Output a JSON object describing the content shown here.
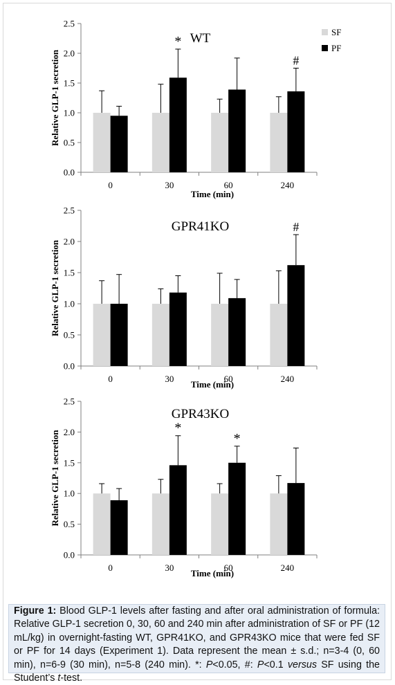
{
  "chart_data": [
    {
      "type": "bar",
      "title": "WT",
      "xlabel": "Time (min)",
      "ylabel": "Relative GLP-1 secretion",
      "ylim": [
        0,
        2.5
      ],
      "yticks": [
        "0.0",
        "0.5",
        "1.0",
        "1.5",
        "2.0",
        "2.5"
      ],
      "categories": [
        "0",
        "30",
        "60",
        "240"
      ],
      "legend": "top-right",
      "series": [
        {
          "name": "SF",
          "color": "#d9d9d9",
          "values": [
            1.0,
            1.0,
            1.0,
            1.0
          ],
          "errors": [
            0.37,
            0.48,
            0.23,
            0.27
          ]
        },
        {
          "name": "PF",
          "color": "#000000",
          "values": [
            0.95,
            1.59,
            1.39,
            1.36
          ],
          "errors": [
            0.16,
            0.48,
            0.53,
            0.39
          ]
        }
      ],
      "annotations": [
        {
          "text": "*",
          "category": "30",
          "series": "PF"
        },
        {
          "text": "#",
          "category": "240",
          "series": "PF"
        }
      ]
    },
    {
      "type": "bar",
      "title": "GPR41KO",
      "xlabel": "Time (min)",
      "ylabel": "Relative GLP-1 secretion",
      "ylim": [
        0,
        2.5
      ],
      "yticks": [
        "0.0",
        "0.5",
        "1.0",
        "1.5",
        "2.0",
        "2.5"
      ],
      "categories": [
        "0",
        "30",
        "60",
        "240"
      ],
      "series": [
        {
          "name": "SF",
          "color": "#d9d9d9",
          "values": [
            1.0,
            1.0,
            1.0,
            1.0
          ],
          "errors": [
            0.37,
            0.24,
            0.49,
            0.53
          ]
        },
        {
          "name": "PF",
          "color": "#000000",
          "values": [
            1.0,
            1.18,
            1.09,
            1.62
          ],
          "errors": [
            0.47,
            0.27,
            0.3,
            0.49
          ]
        }
      ],
      "annotations": [
        {
          "text": "#",
          "category": "240",
          "series": "PF"
        }
      ]
    },
    {
      "type": "bar",
      "title": "GPR43KO",
      "xlabel": "Time (min)",
      "ylabel": "Relative GLP-1 secretion",
      "ylim": [
        0,
        2.5
      ],
      "yticks": [
        "0.0",
        "0.5",
        "1.0",
        "1.5",
        "2.0",
        "2.5"
      ],
      "categories": [
        "0",
        "30",
        "60",
        "240"
      ],
      "series": [
        {
          "name": "SF",
          "color": "#d9d9d9",
          "values": [
            1.0,
            1.0,
            1.0,
            1.0
          ],
          "errors": [
            0.16,
            0.23,
            0.16,
            0.29
          ]
        },
        {
          "name": "PF",
          "color": "#000000",
          "values": [
            0.89,
            1.46,
            1.5,
            1.17
          ],
          "errors": [
            0.19,
            0.48,
            0.27,
            0.57
          ]
        }
      ],
      "annotations": [
        {
          "text": "*",
          "category": "30",
          "series": "PF"
        },
        {
          "text": "*",
          "category": "60",
          "series": "PF"
        }
      ]
    }
  ],
  "caption": {
    "figure_label": "Figure 1:",
    "part1": " Blood GLP-1 levels after fasting and after oral administration of formula: Relative GLP-1 secretion 0, 30, 60 and 240 min after administration of SF or PF (12 mL/kg) in overnight-fasting WT, GPR41KO, and GPR43KO mice that were fed SF or PF for 14 days (Experiment 1). Data represent the mean ± s.d.; n=3-4 (0, 60 min), n=6-9 (30 min), n=5-8 (240 min). *: ",
    "p1": "P",
    "part2": "<0.05, #: ",
    "p2": "P",
    "part3": "<0.1 ",
    "versus": "versus",
    "part4": " SF using the Student’s ",
    "t": "t",
    "part5": "-test."
  }
}
